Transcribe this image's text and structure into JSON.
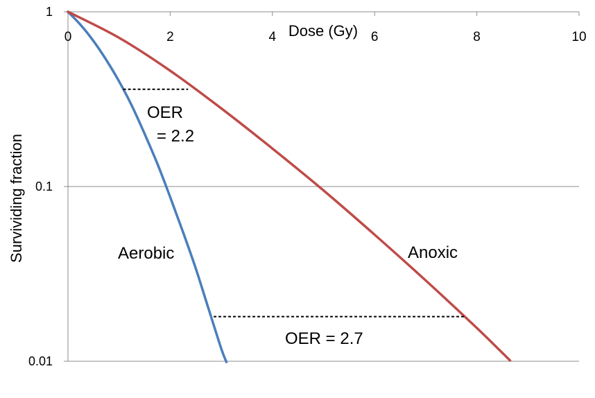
{
  "chart_data": {
    "type": "line",
    "title": "",
    "xlabel": "Dose (Gy)",
    "ylabel": "Survividing fraction",
    "xlim": [
      0,
      10
    ],
    "ylim": [
      0.01,
      1
    ],
    "yscale": "log",
    "x_ticks": [
      "0",
      "2",
      "4",
      "6",
      "8",
      "10"
    ],
    "y_ticks": [
      "1",
      "0.1",
      "0.01"
    ],
    "grid": "horizontal",
    "x_axis_position": "top",
    "series": [
      {
        "name": "Aerobic",
        "color": "#4a7ebb",
        "x": [
          0,
          0.25,
          0.5,
          0.75,
          1.0,
          1.25,
          1.5,
          1.75,
          2.0,
          2.25,
          2.5,
          2.75,
          3.0,
          3.1
        ],
        "y": [
          1.0,
          0.84,
          0.68,
          0.53,
          0.4,
          0.29,
          0.2,
          0.135,
          0.087,
          0.055,
          0.034,
          0.02,
          0.0118,
          0.0099
        ]
      },
      {
        "name": "Anoxic",
        "color": "#be4b48",
        "x": [
          0,
          1,
          2,
          3,
          4,
          5,
          6,
          7,
          8,
          8.65
        ],
        "y": [
          1.0,
          0.71,
          0.46,
          0.28,
          0.165,
          0.095,
          0.053,
          0.029,
          0.0155,
          0.0101
        ]
      }
    ],
    "oer_markers": [
      {
        "label_lines": [
          "OER",
          "= 2.2"
        ],
        "y": 0.36,
        "x_from": 1.08,
        "x_to": 2.35
      },
      {
        "label_lines": [
          "OER = 2.7"
        ],
        "y": 0.018,
        "x_from": 2.85,
        "x_to": 7.75
      }
    ],
    "series_labels": [
      "Aerobic",
      "Anoxic"
    ]
  }
}
